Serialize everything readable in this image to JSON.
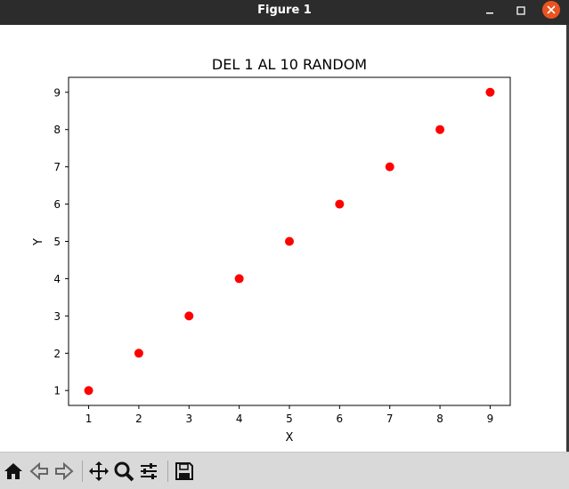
{
  "window": {
    "title": "Figure 1"
  },
  "toolbar": {
    "tools": [
      {
        "name": "home-icon"
      },
      {
        "name": "back-arrow-icon"
      },
      {
        "name": "forward-arrow-icon"
      },
      {
        "name": "pan-move-icon"
      },
      {
        "name": "zoom-magnifier-icon"
      },
      {
        "name": "configure-subplots-icon"
      },
      {
        "name": "save-disk-icon"
      }
    ]
  },
  "chart_data": {
    "type": "scatter",
    "title": "DEL 1 AL 10 RANDOM",
    "xlabel": "X",
    "ylabel": "Y",
    "x": [
      1,
      2,
      3,
      4,
      5,
      6,
      7,
      8,
      9
    ],
    "y": [
      1,
      2,
      3,
      4,
      5,
      6,
      7,
      8,
      9
    ],
    "xlim": [
      0.6,
      9.4
    ],
    "ylim": [
      0.6,
      9.4
    ],
    "xticks": [
      "1",
      "2",
      "3",
      "4",
      "5",
      "6",
      "7",
      "8",
      "9"
    ],
    "yticks": [
      "1",
      "2",
      "3",
      "4",
      "5",
      "6",
      "7",
      "8",
      "9"
    ],
    "color": "#ff0000",
    "grid": false
  }
}
